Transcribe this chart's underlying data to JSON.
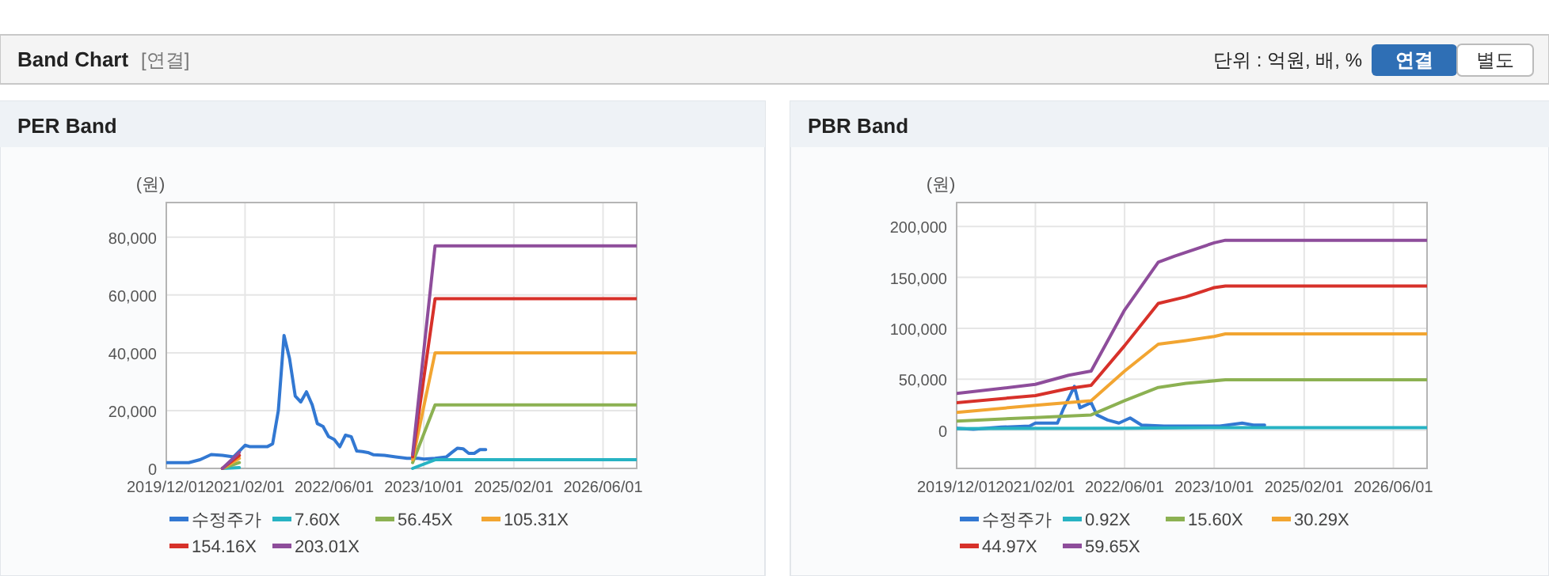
{
  "chart_data": [
    {
      "type": "other",
      "title": "Band Chart",
      "annotations": [
        "[연결]",
        "단위 : 억원, 배, %",
        "연결",
        "별도"
      ]
    },
    {
      "type": "line",
      "title": "PER Band",
      "ylabel": "(원)",
      "xlim": [
        "2019-12-01",
        "2026-12-01"
      ],
      "ylim": [
        0,
        92000
      ],
      "xticks": [
        {
          "value": "2019-12-01",
          "label": "2019/12/01"
        },
        {
          "value": "2021-02-01",
          "label": "2021/02/01"
        },
        {
          "value": "2022-06-01",
          "label": "2022/06/01"
        },
        {
          "value": "2023-10-01",
          "label": "2023/10/01"
        },
        {
          "value": "2025-02-01",
          "label": "2025/02/01"
        },
        {
          "value": "2026-06-01",
          "label": "2026/06/01"
        }
      ],
      "yticks": [
        0,
        {
          "value": 20000,
          "label": "20,000"
        },
        {
          "value": 40000,
          "label": "40,000"
        },
        {
          "value": 60000,
          "label": "60,000"
        },
        {
          "value": 80000,
          "label": "80,000"
        }
      ],
      "grid": true,
      "legend": "bottom",
      "marker": "none",
      "line_style": "solid",
      "series": [
        {
          "name": "수정주가",
          "color": "#3278d2",
          "x": [
            "2019-12-01",
            "2020-04-01",
            "2020-06-01",
            "2020-08-01",
            "2020-10-01",
            "2020-12-01",
            "2021-01-01",
            "2021-02-01",
            "2021-03-01",
            "2021-06-01",
            "2021-07-01",
            "2021-08-01",
            "2021-09-01",
            "2021-10-01",
            "2021-11-01",
            "2021-12-01",
            "2022-01-01",
            "2022-02-01",
            "2022-03-01",
            "2022-04-01",
            "2022-05-01",
            "2022-06-01",
            "2022-07-01",
            "2022-08-01",
            "2022-09-01",
            "2022-10-01",
            "2022-11-01",
            "2022-12-01",
            "2023-01-01",
            "2023-03-01",
            "2023-05-01",
            "2023-07-01",
            "2023-09-01",
            "2023-10-01",
            "2023-12-01",
            "2024-02-01",
            "2024-03-01",
            "2024-04-01",
            "2024-05-01",
            "2024-06-01",
            "2024-07-01",
            "2024-08-01",
            "2024-09-01"
          ],
          "values": [
            2000,
            2000,
            3000,
            4800,
            4500,
            4000,
            6000,
            8000,
            7500,
            7500,
            8500,
            20000,
            46000,
            38000,
            25000,
            23000,
            26500,
            22000,
            15500,
            14500,
            11000,
            10000,
            7500,
            11500,
            11000,
            6000,
            5800,
            5500,
            4700,
            4500,
            4000,
            3500,
            3500,
            3200,
            3500,
            4000,
            5500,
            7000,
            6800,
            5200,
            5200,
            6500,
            6500
          ]
        },
        {
          "name": "7.60X",
          "color": "#27b3c3",
          "x": [
            "2020-10-01",
            "2021-01-01",
            "2022-01-01",
            "2023-08-01",
            "2023-12-01",
            "2026-12-01"
          ],
          "values": [
            0,
            300,
            null,
            0,
            3000,
            3000
          ]
        },
        {
          "name": "56.45X",
          "color": "#8cb152",
          "x": [
            "2020-10-01",
            "2021-01-01",
            "2022-01-01",
            "2023-08-01",
            "2023-12-01",
            "2026-12-01"
          ],
          "values": [
            0,
            2000,
            null,
            2000,
            22000,
            22000
          ]
        },
        {
          "name": "105.31X",
          "color": "#f2a531",
          "x": [
            "2020-10-01",
            "2021-01-01",
            "2022-01-01",
            "2023-08-01",
            "2023-12-01",
            "2026-12-01"
          ],
          "values": [
            0,
            3500,
            null,
            3000,
            40000,
            40000
          ]
        },
        {
          "name": "154.16X",
          "color": "#d7312a",
          "x": [
            "2020-10-01",
            "2021-01-01",
            "2022-01-01",
            "2023-08-01",
            "2023-12-01",
            "2026-12-01"
          ],
          "values": [
            0,
            4500,
            null,
            4000,
            58700,
            58700
          ]
        },
        {
          "name": "203.01X",
          "color": "#8e4d9b",
          "x": [
            "2020-10-01",
            "2021-01-01",
            "2022-01-01",
            "2023-08-01",
            "2023-12-01",
            "2026-12-01"
          ],
          "values": [
            0,
            5500,
            null,
            4800,
            77000,
            77000
          ]
        }
      ]
    },
    {
      "type": "line",
      "title": "PBR Band",
      "ylabel": "(원)",
      "xlim": [
        "2019-12-01",
        "2026-12-01"
      ],
      "ylim": [
        -37500,
        223500
      ],
      "xticks": [
        {
          "value": "2019-12-01",
          "label": "2019/12/01"
        },
        {
          "value": "2021-02-01",
          "label": "2021/02/01"
        },
        {
          "value": "2022-06-01",
          "label": "2022/06/01"
        },
        {
          "value": "2023-10-01",
          "label": "2023/10/01"
        },
        {
          "value": "2025-02-01",
          "label": "2025/02/01"
        },
        {
          "value": "2026-06-01",
          "label": "2026/06/01"
        }
      ],
      "yticks": [
        0,
        {
          "value": 50000,
          "label": "50,000"
        },
        {
          "value": 100000,
          "label": "100,000"
        },
        {
          "value": 150000,
          "label": "150,000"
        },
        {
          "value": 200000,
          "label": "200,000"
        }
      ],
      "grid": true,
      "legend": "bottom",
      "marker": "none",
      "line_style": "solid",
      "series": [
        {
          "name": "수정주가",
          "color": "#3278d2",
          "x": [
            "2019-12-01",
            "2020-03-01",
            "2020-08-01",
            "2021-01-01",
            "2021-02-01",
            "2021-06-01",
            "2021-07-01",
            "2021-09-01",
            "2021-10-01",
            "2021-12-01",
            "2022-01-01",
            "2022-03-01",
            "2022-05-01",
            "2022-07-01",
            "2022-09-01",
            "2023-01-01",
            "2023-11-01",
            "2024-03-01",
            "2024-05-01",
            "2024-07-01"
          ],
          "values": [
            2000,
            1000,
            3000,
            4000,
            7000,
            7000,
            20000,
            43000,
            22000,
            27000,
            15000,
            10000,
            7000,
            12000,
            5000,
            4000,
            4000,
            7000,
            5000,
            5000
          ]
        },
        {
          "name": "0.92X",
          "color": "#27b3c3",
          "x": [
            "2019-12-01",
            "2022-06-01",
            "2023-12-01",
            "2026-12-01"
          ],
          "values": [
            1500,
            2000,
            2500,
            2500
          ]
        },
        {
          "name": "15.60X",
          "color": "#8cb152",
          "x": [
            "2019-12-01",
            "2021-02-01",
            "2021-12-01",
            "2022-06-01",
            "2022-12-01",
            "2023-05-01",
            "2023-12-01",
            "2026-12-01"
          ],
          "values": [
            9000,
            12500,
            15000,
            29000,
            42000,
            46000,
            49500,
            49500
          ]
        },
        {
          "name": "30.29X",
          "color": "#f2a531",
          "x": [
            "2019-12-01",
            "2021-02-01",
            "2021-12-01",
            "2022-06-01",
            "2022-12-01",
            "2023-05-01",
            "2023-10-01",
            "2023-12-01",
            "2026-12-01"
          ],
          "values": [
            17500,
            24500,
            29000,
            58000,
            84500,
            88000,
            92000,
            94500,
            94500
          ]
        },
        {
          "name": "44.97X",
          "color": "#d7312a",
          "x": [
            "2019-12-01",
            "2021-02-01",
            "2021-08-01",
            "2021-12-01",
            "2022-06-01",
            "2022-12-01",
            "2023-05-01",
            "2023-10-01",
            "2023-12-01",
            "2026-12-01"
          ],
          "values": [
            27000,
            34000,
            41000,
            44000,
            83000,
            124500,
            131000,
            140000,
            141500,
            141500
          ]
        },
        {
          "name": "59.65X",
          "color": "#8e4d9b",
          "x": [
            "2019-12-01",
            "2021-02-01",
            "2021-08-01",
            "2021-12-01",
            "2022-06-01",
            "2022-12-01",
            "2023-03-01",
            "2023-10-01",
            "2023-12-01",
            "2026-12-01"
          ],
          "values": [
            36000,
            45000,
            54000,
            58000,
            118000,
            165000,
            171000,
            184000,
            186500,
            186500
          ]
        }
      ]
    }
  ]
}
